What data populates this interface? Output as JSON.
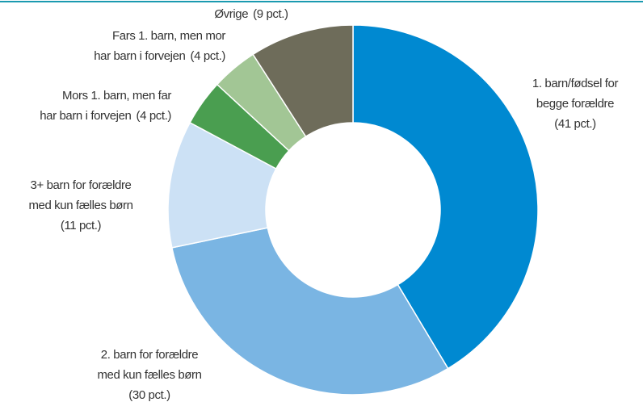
{
  "chart_data": {
    "type": "donut",
    "categories": [
      [
        "1. barn/fødsel for",
        "begge forældre"
      ],
      [
        "2. barn for forældre",
        "med kun fælles børn"
      ],
      [
        "3+ barn for forældre",
        "med kun fælles børn"
      ],
      [
        "Mors 1. barn, men far",
        "har barn i forvejen"
      ],
      [
        "Fars 1. barn, men mor",
        "har barn i forvejen"
      ],
      [
        "Øvrige"
      ]
    ],
    "values": [
      41,
      30,
      11,
      4,
      4,
      9
    ],
    "value_labels": [
      "(41 pct.)",
      "(30 pct.)",
      "(11 pct.)",
      "(4 pct.)",
      "(4 pct.)",
      "(9 pct.)"
    ],
    "colors": [
      "#0089d1",
      "#7ab5e3",
      "#cce1f5",
      "#4a9e50",
      "#a2c695",
      "#6e6c5a"
    ]
  }
}
